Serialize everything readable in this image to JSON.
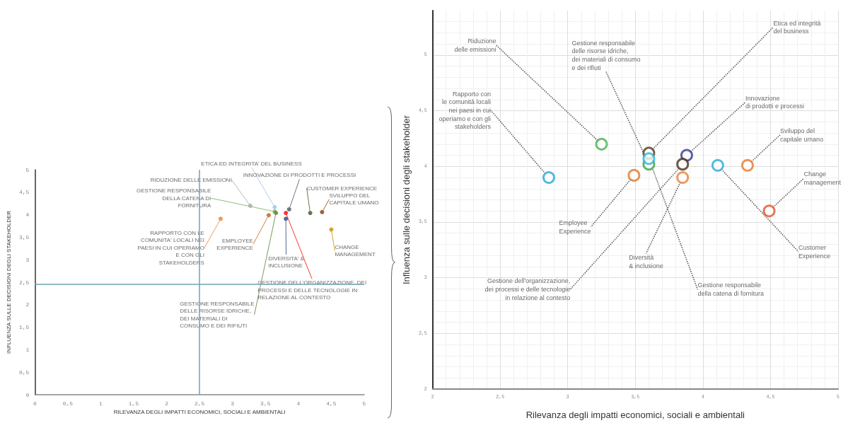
{
  "chart_data": [
    {
      "type": "scatter",
      "xlabel": "RILEVANZA DEGLI IMPATTI ECONOMICI, SOCIALI E AMBIENTALI",
      "ylabel": "INFLUENZA SULLE DECISIONI DEGLI STAKEHOLDER",
      "marker": "circle",
      "grid": false,
      "xlim": [
        0,
        5
      ],
      "ylim": [
        0,
        5
      ],
      "xticks": [
        0,
        {
          "value": 0.5,
          "label": "0,5"
        },
        1,
        {
          "value": 1.5,
          "label": "1,5"
        },
        2,
        {
          "value": 2.5,
          "label": "2,5"
        },
        3,
        {
          "value": 3.5,
          "label": "3,5"
        },
        4,
        {
          "value": 4.5,
          "label": "4,5"
        },
        5
      ],
      "yticks": [
        0,
        {
          "value": 0.5,
          "label": "0,5"
        },
        1,
        {
          "value": 1.5,
          "label": "1,5"
        },
        2,
        {
          "value": 2.5,
          "label": "2,5"
        },
        3,
        {
          "value": 3.5,
          "label": "3,5"
        },
        4,
        {
          "value": 4.5,
          "label": "4,5"
        },
        5
      ],
      "ref_lines": [
        {
          "axis": "x",
          "value": 2.5,
          "color": "#6fa3b5"
        },
        {
          "axis": "y",
          "value": 2.45,
          "color": "#6fa3b5"
        }
      ],
      "series": [
        {
          "name": "RIDUZIONE DELLE EMISSIONI",
          "color": "#a5a5a5",
          "x": [
            3.27
          ],
          "values": [
            4.2
          ]
        },
        {
          "name": "ETICA ED INTEGRITA' DEL BUSINESS",
          "color": "#9dc3e6",
          "x": [
            3.64
          ],
          "values": [
            4.17
          ]
        },
        {
          "name": "GESTIONE RESPONSABILE\nDELLA CATENA DI\nFORNITURA",
          "color": "#70ad47",
          "x": [
            3.64
          ],
          "values": [
            4.07
          ]
        },
        {
          "name": "GESTIONE RESPONSABILE\nDELLE RISORSE IDRICHE,\nDEI MATERIALI DI\nCONSUMO E DEI RIFIUTI",
          "color": "#548235",
          "x": [
            3.66
          ],
          "values": [
            4.04
          ]
        },
        {
          "name": "RAPPORTO CON LE\nCOMUNITA' LOCALI NEI\nPAESI IN CUI OPERIAMO\nE CON GLI\nSTAKEHOLDERS",
          "color": "#ed7d31",
          "x": [
            2.82
          ],
          "values": [
            3.91
          ]
        },
        {
          "name": "EMPLOYEE\nEXPERIENCE",
          "color": "#c55a11",
          "x": [
            3.55
          ],
          "values": [
            3.99
          ]
        },
        {
          "name": "INNOVAZIONE DI PRODOTTI E PROCESSI",
          "color": "#44546a",
          "x": [
            3.86
          ],
          "values": [
            4.12
          ]
        },
        {
          "name": "GESTIONE DELL'ORGANIZZAZIONE, DEI\nPROCESSI E DELLE TECNOLOGIE IN\nRELAZIONE AL CONTESTO",
          "color": "#ff0000",
          "x": [
            3.81
          ],
          "values": [
            4.04
          ]
        },
        {
          "name": "DIVERSITA' &\nINCLUSIONE",
          "color": "#264478",
          "x": [
            3.81
          ],
          "values": [
            3.91
          ]
        },
        {
          "name": "CUSTOMER EXPERIENCE",
          "color": "#375623",
          "x": [
            4.18
          ],
          "values": [
            4.04
          ]
        },
        {
          "name": "SVILUPPO DEL\nCAPITALE UMANO",
          "color": "#843c0c",
          "x": [
            4.36
          ],
          "values": [
            4.06
          ]
        },
        {
          "name": "CHANGE\nMANAGEMENT",
          "color": "#bf9000",
          "x": [
            4.5
          ],
          "values": [
            3.67
          ]
        }
      ]
    },
    {
      "type": "scatter",
      "xlabel": "Rilevanza degli impatti economici, sociali e ambientali",
      "ylabel": "Influenza sulle decisioni degli stakeholder",
      "marker": "circle",
      "grid": true,
      "xlim": [
        2,
        5
      ],
      "ylim": [
        2,
        5.4
      ],
      "xticks": [
        2,
        {
          "value": 2.5,
          "label": "2,5"
        },
        3,
        {
          "value": 3.5,
          "label": "3,5"
        },
        4,
        {
          "value": 4.5,
          "label": "4,5"
        },
        5
      ],
      "yticks": [
        2,
        {
          "value": 2.5,
          "label": "2,5"
        },
        3,
        {
          "value": 3.5,
          "label": "3,5"
        },
        4,
        {
          "value": 4.5,
          "label": "4,5"
        },
        5
      ],
      "series": [
        {
          "name": "Rapporto con\nle comunità locali\nnei paesi in cui\noperiamo e con gli\nstakeholders",
          "color": "#29a8d8",
          "x": [
            2.86
          ],
          "values": [
            3.9
          ]
        },
        {
          "name": "Riduzione\ndelle emissioni",
          "color": "#4caf50",
          "x": [
            3.25
          ],
          "values": [
            4.2
          ]
        },
        {
          "name": "Gestione responsabile\ndelle risorse idriche,\ndei materiali di consumo\ne dei rifiuti",
          "color": "#43a047",
          "x": [
            3.6
          ],
          "values": [
            4.02
          ]
        },
        {
          "name": "Etica ed integrità\ndel business",
          "color": "#5a3a1e",
          "x": [
            3.6
          ],
          "values": [
            4.12
          ]
        },
        {
          "name": "Gestione responsabile\ndella catena di fornitura",
          "color": "#29b6e0",
          "x": [
            3.6
          ],
          "values": [
            4.07
          ]
        },
        {
          "name": "Innovazione\ndi prodotti e processi",
          "color": "#2f3b8f",
          "x": [
            3.88
          ],
          "values": [
            4.1
          ]
        },
        {
          "name": "Gestione dell'organizzazione,\ndei processi e delle tecnologie\nin relazione al contesto",
          "color": "#4a2f1a",
          "x": [
            3.85
          ],
          "values": [
            4.02
          ]
        },
        {
          "name": "Diversità\n& inclusione",
          "color": "#e8823a",
          "x": [
            3.85
          ],
          "values": [
            3.9
          ]
        },
        {
          "name": "Employee\nExperience",
          "color": "#e07b30",
          "x": [
            3.49
          ],
          "values": [
            3.92
          ]
        },
        {
          "name": "Customer\nExperience",
          "color": "#2aa9d9",
          "x": [
            4.11
          ],
          "values": [
            4.01
          ]
        },
        {
          "name": "Sviluppo del\ncapitale umano",
          "color": "#e8772e",
          "x": [
            4.33
          ],
          "values": [
            4.01
          ]
        },
        {
          "name": "Change\nmanagement",
          "color": "#e0552a",
          "x": [
            4.49
          ],
          "values": [
            3.6
          ]
        }
      ]
    }
  ]
}
